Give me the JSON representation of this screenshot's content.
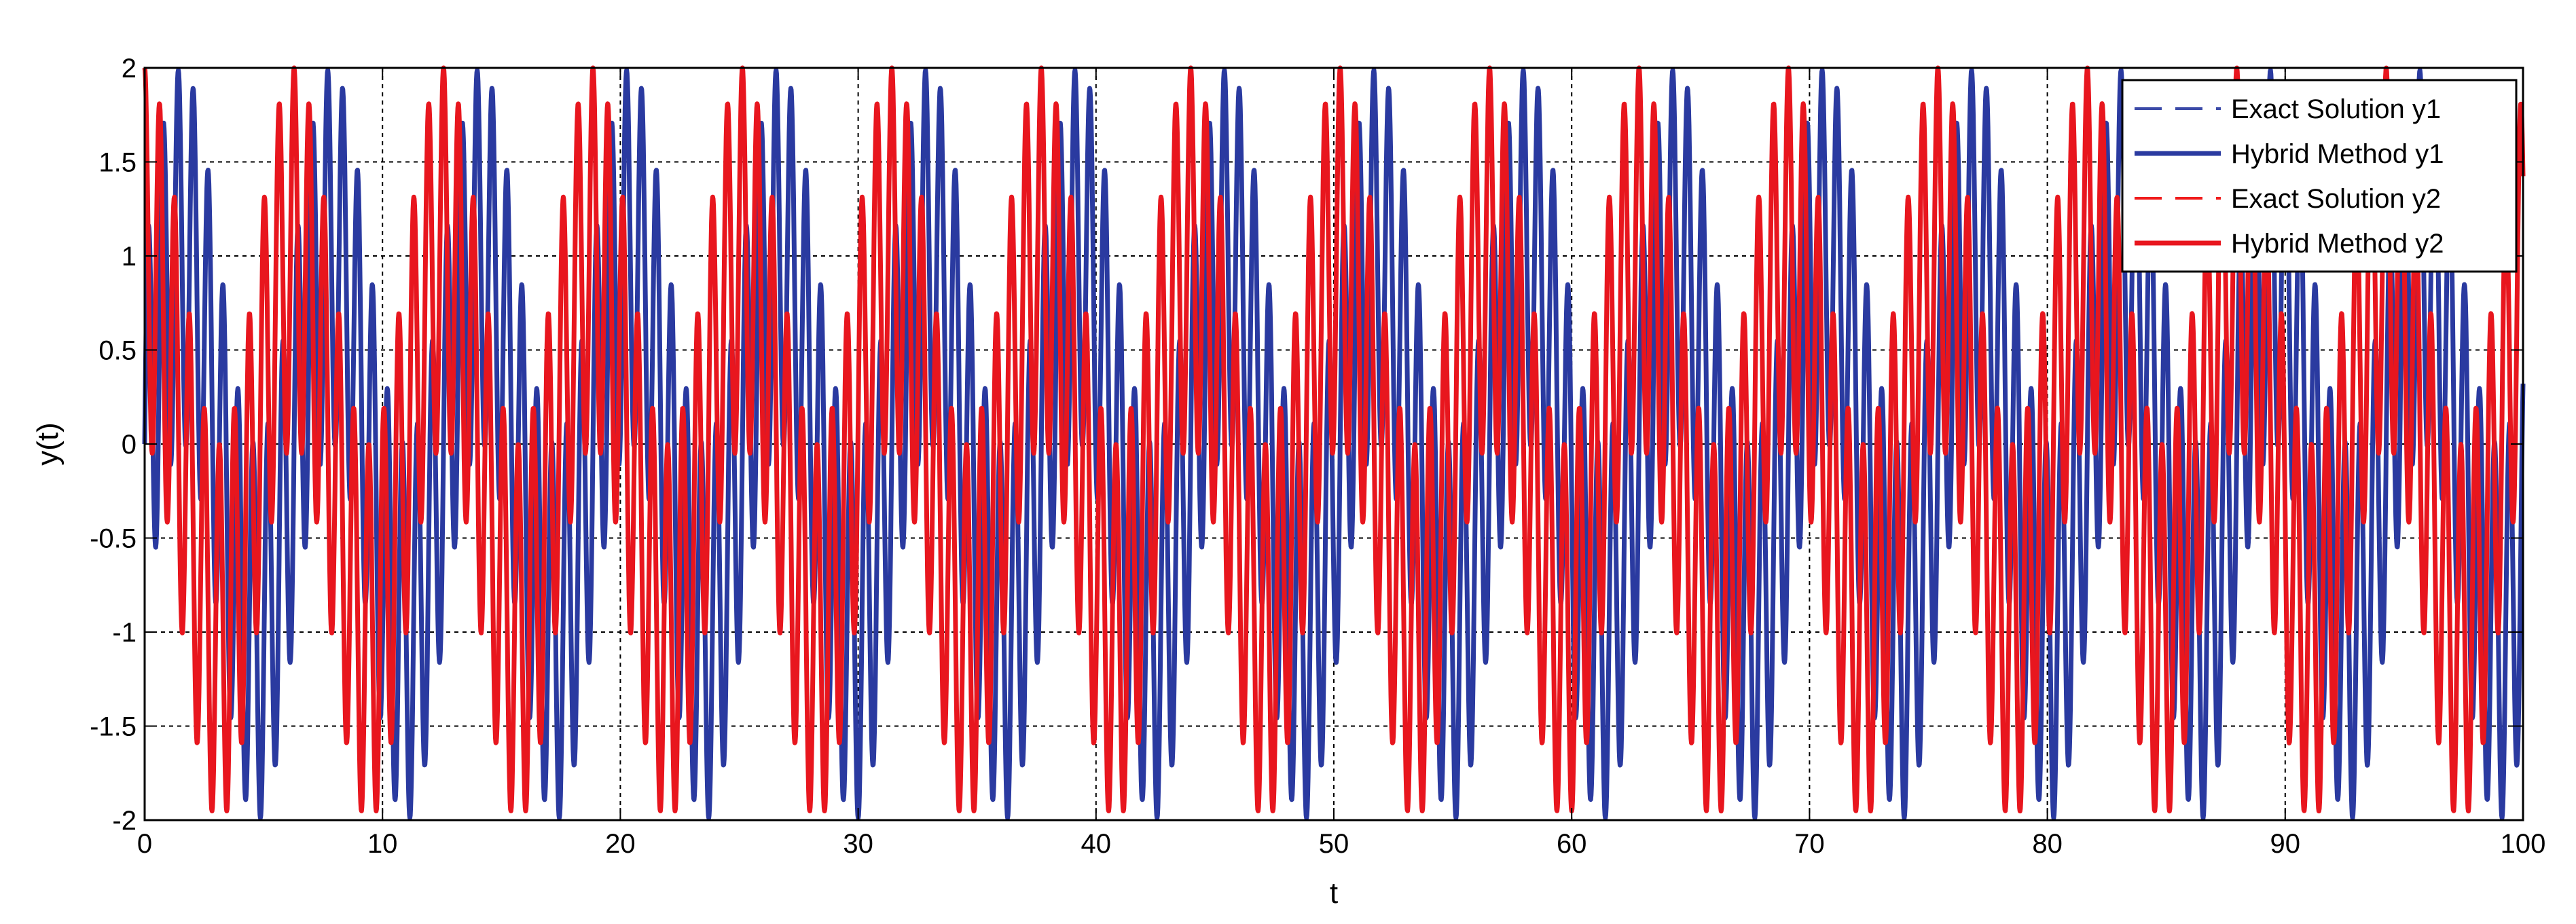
{
  "chart_data": {
    "type": "line",
    "title": "",
    "xlabel": "t",
    "ylabel": "y(t)",
    "xlim": [
      0,
      100
    ],
    "ylim": [
      -2,
      2
    ],
    "xticks": [
      0,
      10,
      20,
      30,
      40,
      50,
      60,
      70,
      80,
      90,
      100
    ],
    "yticks": [
      -2,
      -1.5,
      -1,
      -0.5,
      0,
      0.5,
      1,
      1.5,
      2
    ],
    "xtick_labels": [
      "0",
      "10",
      "20",
      "30",
      "40",
      "50",
      "60",
      "70",
      "80",
      "90",
      "100"
    ],
    "ytick_labels": [
      "-2",
      "-1.5",
      "-1",
      "-0.5",
      "0",
      "0.5",
      "1",
      "1.5",
      "2"
    ],
    "grid": true,
    "legend_position": "top-right",
    "series": [
      {
        "name": "Exact Solution y1",
        "color": "#3b4aa8",
        "style": "dashed",
        "expression": "sin(t) + sin(10t)"
      },
      {
        "name": "Hybrid Method y1",
        "color": "#2a3aa0",
        "style": "solid",
        "expression": "sin(t) + sin(10t)"
      },
      {
        "name": "Exact Solution y2",
        "color": "#f01c1c",
        "style": "dashed",
        "expression": "cos(t) + cos(10t)"
      },
      {
        "name": "Hybrid Method y2",
        "color": "#e8161e",
        "style": "solid",
        "expression": "cos(t) + cos(10t)"
      }
    ]
  }
}
